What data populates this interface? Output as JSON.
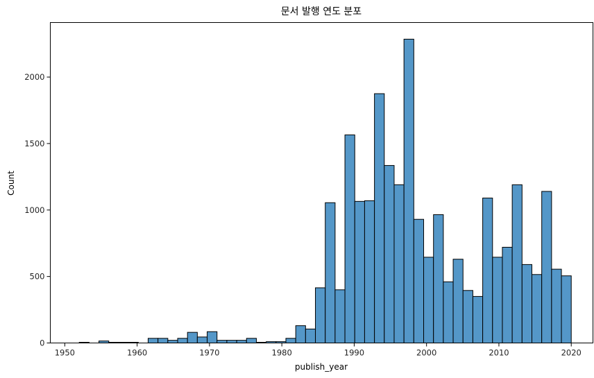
{
  "chart_data": {
    "type": "bar",
    "title": "문서 발행 연도 분포",
    "xlabel": "publish_year",
    "ylabel": "Count",
    "xlim": [
      1948,
      2023
    ],
    "ylim": [
      0,
      2410
    ],
    "xticks": [
      1950,
      1960,
      1970,
      1980,
      1990,
      2000,
      2010,
      2020
    ],
    "yticks": [
      0,
      500,
      1000,
      1500,
      2000
    ],
    "grid": false,
    "bar_color": "#5497c8",
    "edge_color": "#000000",
    "bins": {
      "start": 1952,
      "end": 2020,
      "width": 1.417,
      "counts": [
        5,
        0,
        15,
        5,
        5,
        5,
        0,
        35,
        35,
        20,
        35,
        80,
        45,
        85,
        20,
        20,
        20,
        35,
        5,
        10,
        10,
        35,
        130,
        105,
        415,
        1055,
        400,
        1565,
        1065,
        1070,
        1875,
        1335,
        1190,
        2285,
        930,
        645,
        965,
        460,
        630,
        395,
        350,
        1090,
        645,
        720,
        1190,
        590,
        515,
        1140,
        555,
        505
      ]
    }
  }
}
